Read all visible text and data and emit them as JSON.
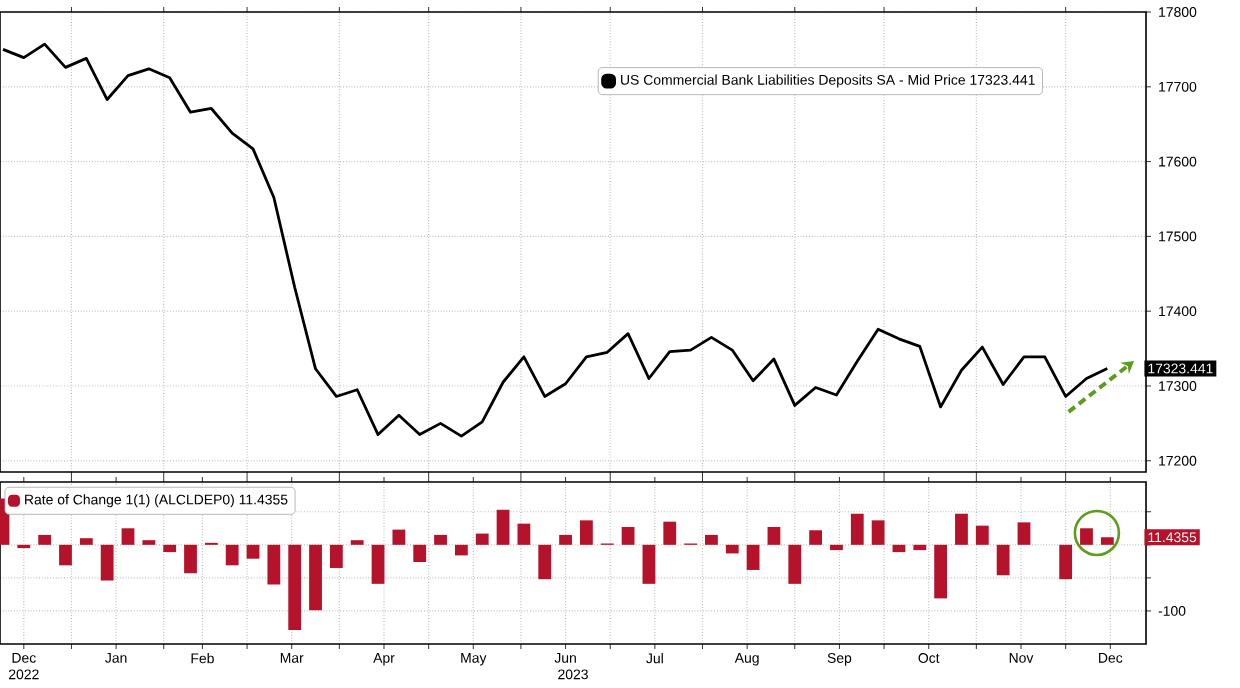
{
  "chart_data": [
    {
      "type": "line",
      "x": [
        "2022-12-09",
        "2022-12-16",
        "2022-12-23",
        "2022-12-30",
        "2023-01-06",
        "2023-01-13",
        "2023-01-20",
        "2023-01-27",
        "2023-02-03",
        "2023-02-10",
        "2023-02-17",
        "2023-02-24",
        "2023-03-03",
        "2023-03-10",
        "2023-03-17",
        "2023-03-24",
        "2023-03-31",
        "2023-04-07",
        "2023-04-14",
        "2023-04-21",
        "2023-04-28",
        "2023-05-05",
        "2023-05-12",
        "2023-05-19",
        "2023-05-26",
        "2023-06-02",
        "2023-06-09",
        "2023-06-16",
        "2023-06-23",
        "2023-06-30",
        "2023-07-07",
        "2023-07-14",
        "2023-07-21",
        "2023-07-28",
        "2023-08-04",
        "2023-08-11",
        "2023-08-18",
        "2023-08-25",
        "2023-09-01",
        "2023-09-08",
        "2023-09-15",
        "2023-09-22",
        "2023-09-29",
        "2023-10-06",
        "2023-10-13",
        "2023-10-20",
        "2023-10-27",
        "2023-11-03",
        "2023-11-10",
        "2023-11-17",
        "2023-11-24",
        "2023-12-01",
        "2023-12-08",
        "2023-12-15"
      ],
      "series": [
        {
          "name": "US Commercial Bank Liabilities Deposits SA - Mid Price 17323.441",
          "color": "#000000",
          "values": [
            17750,
            17739,
            17757,
            17726,
            17738,
            17683,
            17715,
            17724,
            17712,
            17666,
            17671,
            17638,
            17617,
            17552,
            17432,
            17323,
            17286,
            17295,
            17235,
            17261,
            17235,
            17250,
            17233,
            17252,
            17305,
            17339,
            17286,
            17303,
            17339,
            17345,
            17370,
            17310,
            17346,
            17348,
            17365,
            17348,
            17307,
            17336,
            17274,
            17298,
            17288,
            17333,
            17376,
            17363,
            17353,
            17272,
            17321,
            17352,
            17302,
            17339,
            17339,
            17286,
            17310,
            17323.441
          ]
        }
      ],
      "xlim": [
        "2022-12-08",
        "2023-12-28"
      ],
      "xticks": [
        {
          "value": "2023-01-01",
          "label": null
        },
        {
          "value": "2023-02-01",
          "label": null
        },
        {
          "value": "2023-03-01",
          "label": null
        },
        {
          "value": "2023-04-01",
          "label": null
        },
        {
          "value": "2023-05-01",
          "label": null
        },
        {
          "value": "2023-06-01",
          "label": null
        },
        {
          "value": "2023-07-01",
          "label": null
        },
        {
          "value": "2023-08-01",
          "label": null
        },
        {
          "value": "2023-09-01",
          "label": null
        },
        {
          "value": "2023-10-01",
          "label": null
        },
        {
          "value": "2023-11-01",
          "label": null
        },
        {
          "value": "2023-12-01",
          "label": null
        }
      ],
      "ylim": [
        17185,
        17800
      ],
      "yticks": [
        17200,
        17300,
        17400,
        17500,
        17600,
        17700,
        17800,
        {
          "value": 17323.441,
          "label": "17323.441"
        }
      ],
      "tick_labels": "y",
      "grid": true,
      "legend": "top right"
    },
    {
      "type": "bar",
      "x": [
        "2022-12-09",
        "2022-12-16",
        "2022-12-23",
        "2022-12-30",
        "2023-01-06",
        "2023-01-13",
        "2023-01-20",
        "2023-01-27",
        "2023-02-03",
        "2023-02-10",
        "2023-02-17",
        "2023-02-24",
        "2023-03-03",
        "2023-03-10",
        "2023-03-17",
        "2023-03-24",
        "2023-03-31",
        "2023-04-07",
        "2023-04-14",
        "2023-04-21",
        "2023-04-28",
        "2023-05-05",
        "2023-05-12",
        "2023-05-19",
        "2023-05-26",
        "2023-06-02",
        "2023-06-09",
        "2023-06-16",
        "2023-06-23",
        "2023-06-30",
        "2023-07-07",
        "2023-07-14",
        "2023-07-21",
        "2023-07-28",
        "2023-08-04",
        "2023-08-11",
        "2023-08-18",
        "2023-08-25",
        "2023-09-01",
        "2023-09-08",
        "2023-09-15",
        "2023-09-22",
        "2023-09-29",
        "2023-10-06",
        "2023-10-13",
        "2023-10-20",
        "2023-10-27",
        "2023-11-03",
        "2023-11-10",
        "2023-11-17",
        "2023-11-24",
        "2023-12-01",
        "2023-12-08",
        "2023-12-15"
      ],
      "series": [
        {
          "name": "Rate of Change 1(1) (ALCLDEP0) 11.4355",
          "color": "#b5122b",
          "values": [
            70,
            -5,
            15,
            -31,
            10,
            -54,
            25,
            7,
            -11,
            -43,
            3,
            -31,
            -21,
            -60,
            -129,
            -99,
            -35,
            7,
            -59,
            23,
            -26,
            15,
            -16,
            17,
            53,
            32,
            -52,
            15,
            37,
            2,
            27,
            -59,
            35,
            2,
            15,
            -13,
            -38,
            27,
            -59,
            22,
            -8,
            47,
            37,
            -11,
            -8,
            -81,
            47,
            29,
            -46,
            34,
            0,
            -52,
            25,
            11.4355
          ]
        }
      ],
      "xlim": [
        "2022-12-08",
        "2023-12-28"
      ],
      "xticks": [
        {
          "value": "2022-12-16",
          "label": "Dec"
        },
        {
          "value": "2023-01-01",
          "label": null
        },
        {
          "value": "2023-01-16",
          "label": "Jan"
        },
        {
          "value": "2023-02-01",
          "label": null
        },
        {
          "value": "2023-02-14",
          "label": "Feb"
        },
        {
          "value": "2023-03-01",
          "label": null
        },
        {
          "value": "2023-03-16",
          "label": "Mar"
        },
        {
          "value": "2023-04-01",
          "label": null
        },
        {
          "value": "2023-04-16",
          "label": "Apr"
        },
        {
          "value": "2023-05-01",
          "label": null
        },
        {
          "value": "2023-05-16",
          "label": "May"
        },
        {
          "value": "2023-06-01",
          "label": null
        },
        {
          "value": "2023-06-16",
          "label": "Jun"
        },
        {
          "value": "2023-07-01",
          "label": null
        },
        {
          "value": "2023-07-16",
          "label": "Jul"
        },
        {
          "value": "2023-08-01",
          "label": null
        },
        {
          "value": "2023-08-16",
          "label": "Aug"
        },
        {
          "value": "2023-09-01",
          "label": null
        },
        {
          "value": "2023-09-16",
          "label": "Sep"
        },
        {
          "value": "2023-10-01",
          "label": null
        },
        {
          "value": "2023-10-16",
          "label": "Oct"
        },
        {
          "value": "2023-11-01",
          "label": null
        },
        {
          "value": "2023-11-16",
          "label": "Nov"
        },
        {
          "value": "2023-12-01",
          "label": null
        },
        {
          "value": "2023-12-16",
          "label": "Dec"
        }
      ],
      "ylim": [
        -150,
        95
      ],
      "yticks": [
        {
          "value": -100,
          "label": "-100"
        },
        {
          "value": -50,
          "label": null
        },
        {
          "value": 0,
          "label": null
        },
        {
          "value": 50,
          "label": null
        },
        {
          "value": 11.4355,
          "label": "11.4355"
        }
      ],
      "annotations": [
        "2022",
        "2023"
      ],
      "grid": true,
      "legend": "top left"
    }
  ]
}
